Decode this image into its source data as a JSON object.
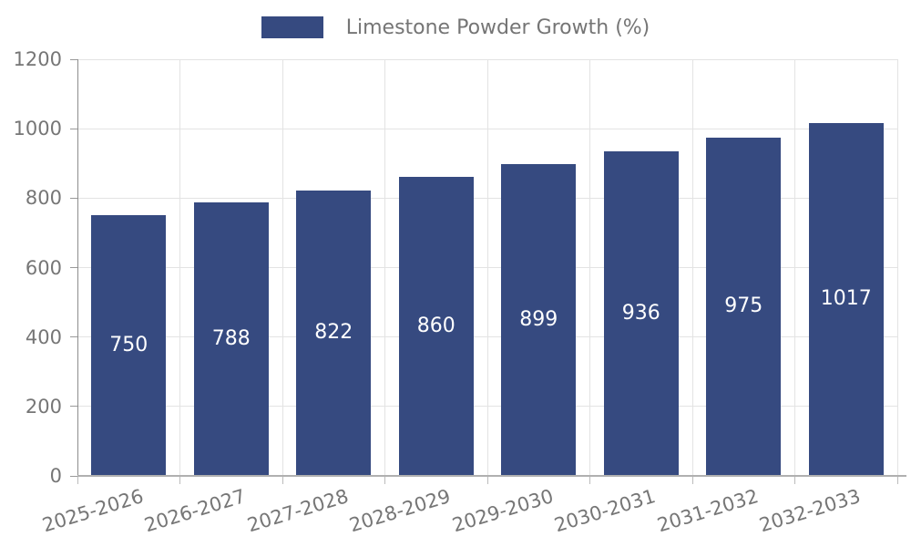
{
  "legend": {
    "label": "Limestone Powder Growth (%)"
  },
  "chart_data": {
    "type": "bar",
    "title": "Limestone Powder Growth (%)",
    "categories": [
      "2025-2026",
      "2026-2027",
      "2027-2028",
      "2028-2029",
      "2029-2030",
      "2030-2031",
      "2031-2032",
      "2032-2033"
    ],
    "values": [
      750,
      788,
      822,
      860,
      899,
      936,
      975,
      1017
    ],
    "xlabel": "",
    "ylabel": "",
    "ylim": [
      0,
      1200
    ],
    "y_ticks": [
      0,
      200,
      400,
      600,
      800,
      1000,
      1200
    ],
    "grid": true,
    "legend_position": "top",
    "colors": {
      "bar": "#364A80",
      "value_label": "#ffffff",
      "axis_text": "#767676",
      "legend_text": "#757575",
      "gridline": "#e3e3e3"
    }
  }
}
